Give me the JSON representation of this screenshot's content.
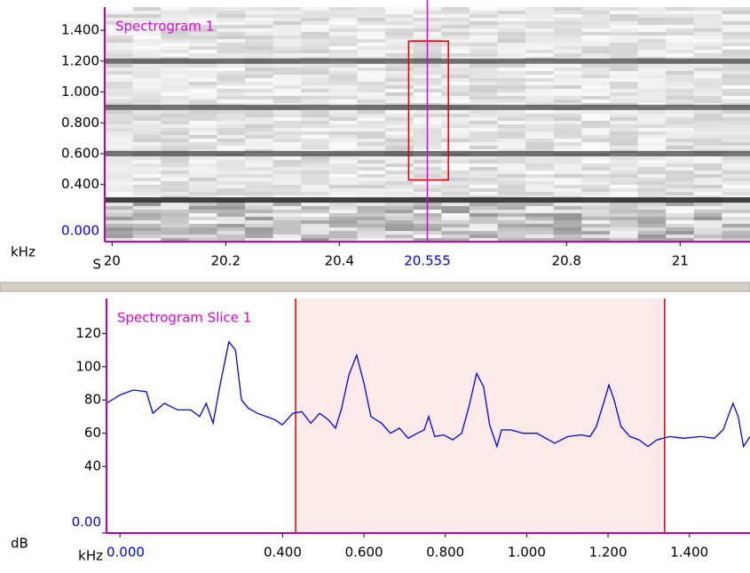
{
  "chart_data": [
    {
      "type": "spectrogram",
      "title": "Spectrogram 1",
      "x_unit": "S",
      "y_unit": "kHz",
      "xlim": [
        19.987,
        21.123
      ],
      "xticks": [
        20,
        20.2,
        20.4,
        20.8,
        21
      ],
      "cursor": 20.555,
      "cursor_color": "#e000e0",
      "ylim": [
        0.03,
        1.55
      ],
      "yticks": [
        {
          "value": 0,
          "label": "0.000"
        },
        {
          "value": 0.4,
          "label": "0.400"
        },
        {
          "value": 0.6,
          "label": "0.600"
        },
        {
          "value": 0.8,
          "label": "0.800"
        },
        {
          "value": 1.0,
          "label": "1.000"
        },
        {
          "value": 1.2,
          "label": "1.200"
        },
        {
          "value": 1.4,
          "label": "1.400"
        }
      ],
      "origin_label_color": "#0000ff",
      "harmonics": [
        0.3,
        0.6,
        0.9,
        1.2
      ],
      "selection": {
        "x": [
          20.522,
          20.592
        ],
        "y": [
          0.43,
          1.33
        ],
        "color": "#e00000"
      }
    },
    {
      "type": "line",
      "title": "Spectrogram Slice 1",
      "x_unit": "kHz",
      "y_unit": "dB",
      "xlim": [
        -0.033,
        1.549
      ],
      "xticks": [
        {
          "value": 0,
          "label": "0.000"
        },
        {
          "value": 0.4,
          "label": "0.400"
        },
        {
          "value": 0.6,
          "label": "0.600"
        },
        {
          "value": 0.8,
          "label": "0.800"
        },
        {
          "value": 1.0,
          "label": "1.000"
        },
        {
          "value": 1.2,
          "label": "1.200"
        },
        {
          "value": 1.4,
          "label": "1.400"
        }
      ],
      "ylim": [
        0,
        141
      ],
      "yticks": [
        {
          "value": 0,
          "label": "0.00"
        },
        40,
        60,
        80,
        100,
        120
      ],
      "origin_label_color": "#0000ff",
      "selection": {
        "x": [
          0.432,
          1.339
        ],
        "color": "#e00000",
        "fill": "#fbeaea"
      },
      "series": [
        {
          "color": "#0000ff",
          "x": [
            -0.033,
            0,
            0.033,
            0.065,
            0.081,
            0.109,
            0.142,
            0.174,
            0.196,
            0.212,
            0.229,
            0.247,
            0.268,
            0.284,
            0.299,
            0.316,
            0.338,
            0.36,
            0.382,
            0.399,
            0.425,
            0.447,
            0.469,
            0.491,
            0.513,
            0.53,
            0.545,
            0.563,
            0.582,
            0.6,
            0.617,
            0.643,
            0.665,
            0.687,
            0.709,
            0.731,
            0.748,
            0.759,
            0.774,
            0.796,
            0.818,
            0.84,
            0.857,
            0.877,
            0.894,
            0.909,
            0.927,
            0.938,
            0.96,
            0.992,
            1.025,
            1.047,
            1.069,
            1.101,
            1.134,
            1.156,
            1.171,
            1.189,
            1.202,
            1.215,
            1.232,
            1.254,
            1.276,
            1.298,
            1.32,
            1.352,
            1.385,
            1.429,
            1.461,
            1.483,
            1.498,
            1.507,
            1.52,
            1.533,
            1.549
          ],
          "values": [
            78,
            83,
            86,
            85,
            72,
            78,
            74,
            74,
            70,
            78,
            66,
            90,
            115,
            110,
            80,
            75,
            72,
            70,
            68,
            65,
            72,
            73,
            66,
            72,
            68,
            63,
            75,
            95,
            107,
            90,
            70,
            66,
            60,
            63,
            57,
            60,
            62,
            70,
            58,
            59,
            56,
            60,
            75,
            96,
            88,
            65,
            52,
            62,
            62,
            60,
            60,
            57,
            54,
            58,
            59,
            58,
            64,
            78,
            89,
            80,
            64,
            58,
            56,
            52,
            56,
            58,
            57,
            58,
            57,
            62,
            72,
            78,
            70,
            52,
            58
          ]
        }
      ]
    }
  ]
}
